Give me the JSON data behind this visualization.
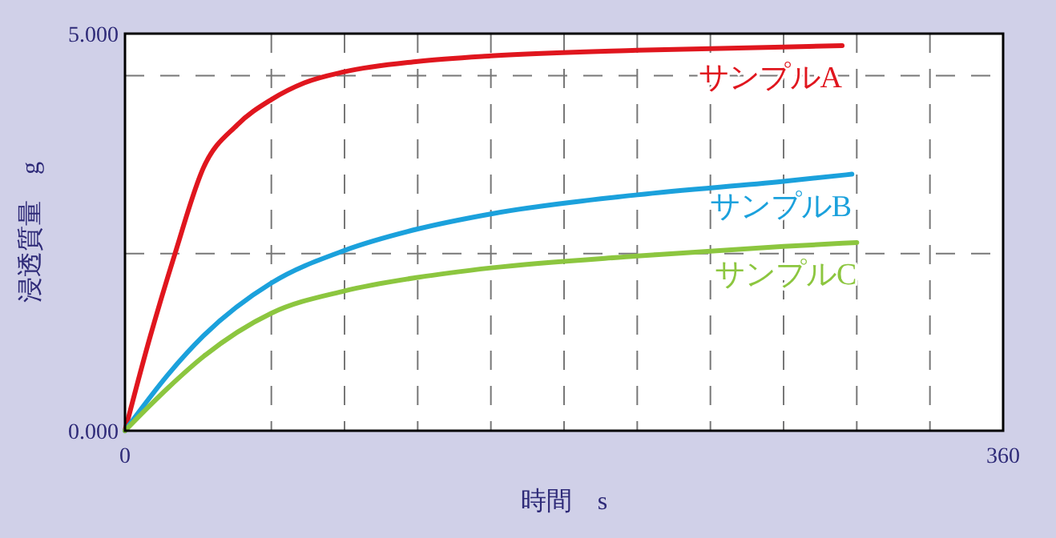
{
  "chart_data": {
    "type": "line",
    "xlabel": "時間　s",
    "ylabel": "浸透質量　g",
    "xlim": [
      0,
      360
    ],
    "ylim": [
      0,
      5
    ],
    "xticks": [
      0,
      {
        "value": 60,
        "label": null
      },
      {
        "value": 90,
        "label": null
      },
      {
        "value": 120,
        "label": null
      },
      {
        "value": 150,
        "label": null
      },
      {
        "value": 180,
        "label": null
      },
      {
        "value": 210,
        "label": null
      },
      {
        "value": 240,
        "label": null
      },
      {
        "value": 270,
        "label": null
      },
      {
        "value": 300,
        "label": null
      },
      {
        "value": 330,
        "label": null
      },
      360
    ],
    "yticks": [
      {
        "value": 0,
        "label": "0.000"
      },
      {
        "value": 2.23,
        "label": null
      },
      {
        "value": 4.47,
        "label": null
      },
      {
        "value": 5,
        "label": "5.000"
      }
    ],
    "grid": true,
    "line_style": "solid",
    "marker": "none",
    "series": [
      {
        "name": "サンプルA",
        "color": "#e0161e",
        "x": [
          0,
          10,
          20.5,
          32,
          46,
          60,
          73.5,
          90,
          120,
          150,
          210,
          270,
          294
        ],
        "values": [
          0,
          1.15,
          2.23,
          3.3,
          3.85,
          4.17,
          4.38,
          4.52,
          4.65,
          4.72,
          4.79,
          4.83,
          4.85
        ]
      },
      {
        "name": "サンプルB",
        "color": "#1ba1dc",
        "x": [
          0,
          18,
          32,
          60,
          90,
          120,
          150,
          210,
          270,
          298
        ],
        "values": [
          0,
          0.72,
          1.19,
          1.86,
          2.27,
          2.54,
          2.73,
          2.97,
          3.14,
          3.23
        ]
      },
      {
        "name": "サンプルC",
        "color": "#8cc63f",
        "x": [
          0,
          18,
          32,
          60,
          90,
          120,
          150,
          210,
          270,
          300
        ],
        "values": [
          0,
          0.55,
          0.93,
          1.48,
          1.76,
          1.93,
          2.05,
          2.2,
          2.32,
          2.37
        ]
      }
    ]
  }
}
